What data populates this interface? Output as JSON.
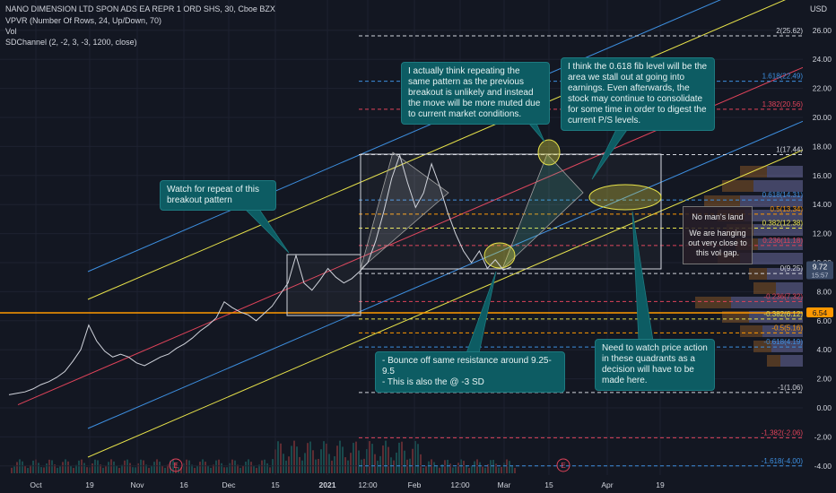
{
  "header": {
    "title": "NANO DIMENSION LTD SPON ADS EA REPR 1 ORD SHS, 30, Cboe BZX",
    "vpvr": "VPVR (Number Of Rows, 24, Up/Down, 70)",
    "vol": "Vol",
    "sdchannel": "SDChannel (2, -2, 3, -3, 1200, close)",
    "currency": "USD"
  },
  "colors": {
    "background": "#131722",
    "price": "#d1d4dc",
    "channel_outer": "#e8e34a",
    "channel_mid": "#3d8fe0",
    "channel_center": "#e0435a",
    "horizontal": "#ff9800",
    "callout": "#0d5c63",
    "current_price_tag": "#3a4a66"
  },
  "price_tags": [
    {
      "value": 9.72,
      "label": "9.72",
      "sub": "15:57",
      "color": "#3a4a66"
    },
    {
      "value": 6.54,
      "label": "6.54",
      "color": "#ff9800"
    }
  ],
  "fib_levels": [
    {
      "level": "2",
      "price": 25.62,
      "label": "2(25.62)",
      "color": "#d1d4dc"
    },
    {
      "level": "1.618",
      "price": 22.49,
      "label": "1.618(22.49)",
      "color": "#3d8fe0"
    },
    {
      "level": "1.382",
      "price": 20.56,
      "label": "1.382(20.56)",
      "color": "#e0435a"
    },
    {
      "level": "1",
      "price": 17.44,
      "label": "1(17.44)",
      "color": "#d1d4dc"
    },
    {
      "level": "0.618",
      "price": 14.31,
      "label": "0.618(14.31)",
      "color": "#3d8fe0"
    },
    {
      "level": "0.5",
      "price": 13.34,
      "label": "0.5(13.34)",
      "color": "#ff9800"
    },
    {
      "level": "0.382",
      "price": 12.38,
      "label": "0.382(12.38)",
      "color": "#e8e34a"
    },
    {
      "level": "0.236",
      "price": 11.18,
      "label": "0.236(11.18)",
      "color": "#e0435a"
    },
    {
      "level": "0",
      "price": 9.25,
      "label": "0(9.25)",
      "color": "#d1d4dc"
    },
    {
      "level": "-0.236",
      "price": 7.32,
      "label": "-0.236(7.32)",
      "color": "#e0435a"
    },
    {
      "level": "-0.382",
      "price": 6.12,
      "label": "-0.382(6.12)",
      "color": "#e8e34a"
    },
    {
      "level": "-0.5",
      "price": 5.16,
      "label": "-0.5(5.16)",
      "color": "#ff9800"
    },
    {
      "level": "-0.618",
      "price": 4.19,
      "label": "-0.618(4.19)",
      "color": "#3d8fe0"
    },
    {
      "level": "-1",
      "price": 1.06,
      "label": "-1(1.06)",
      "color": "#d1d4dc"
    },
    {
      "level": "-1.382",
      "price": -2.06,
      "label": "-1.382(-2.06)",
      "color": "#e0435a"
    },
    {
      "level": "-1.618",
      "price": -4.0,
      "label": "-1.618(-4.00)",
      "color": "#3d8fe0"
    }
  ],
  "annotations": {
    "breakout": "Watch for repeat of this breakout pattern",
    "pattern": "I actually think repeating the same pattern as the previous breakout is unlikely and instead the move will be more muted due to current market conditions.",
    "fib": "I think the 0.618 fib level will be the area we stall out at going into earnings. Even afterwards, the stock may continue to consolidate for some time in order to digest the current P/S levels.",
    "bounce": "- Bounce off same resistance around 9.25-9.5\n- This is also the @ -3 SD",
    "quadrants": "Need to watch price action in these quadrants as a decision will have to be made here.",
    "no_mans_land_title": "No man's land",
    "no_mans_land_body": "We are hanging out very close to this vol gap."
  },
  "earnings_markers": [
    "E",
    "E"
  ],
  "chart_data": {
    "type": "line",
    "title": "NANO DIMENSION LTD SPON ADS EA REPR 1 ORD SHS, 30, Cboe BZX",
    "xlabel": "",
    "ylabel": "USD",
    "ylim": [
      -4.8,
      27.2
    ],
    "y_ticks": [
      -4.0,
      -2.0,
      0.0,
      2.0,
      4.0,
      6.0,
      8.0,
      10.0,
      12.0,
      14.0,
      16.0,
      18.0,
      20.0,
      22.0,
      24.0,
      26.0
    ],
    "x_tick_labels": [
      "Oct",
      "19",
      "Nov",
      "16",
      "Dec",
      "15",
      "2021",
      "12:00",
      "Feb",
      "12:00",
      "Mar",
      "15",
      "Apr",
      "19"
    ],
    "series": [
      {
        "values": [
          0.9,
          1.0,
          1.1,
          1.3,
          1.6,
          1.8,
          2.1,
          2.5,
          3.2,
          4.0,
          5.7,
          4.6,
          3.9,
          3.5,
          3.7,
          3.5,
          3.1,
          2.9,
          3.2,
          3.5,
          3.7,
          4.1,
          4.4,
          4.8,
          5.3,
          5.7,
          6.2,
          7.3,
          6.9,
          6.6,
          6.4,
          6.0,
          6.5,
          7.0,
          7.8,
          8.6,
          10.5,
          8.6,
          8.1,
          8.8,
          9.6,
          9.0,
          8.6,
          8.9,
          9.4,
          10.0,
          11.5,
          13.5,
          15.8,
          17.4,
          15.5,
          13.8,
          14.8,
          16.8,
          15.3,
          13.5,
          12.0,
          10.8,
          10.0,
          10.8,
          9.6,
          10.2,
          9.5,
          9.7
        ]
      }
    ],
    "volume_profile_note": "VPVR histogram on right side"
  }
}
